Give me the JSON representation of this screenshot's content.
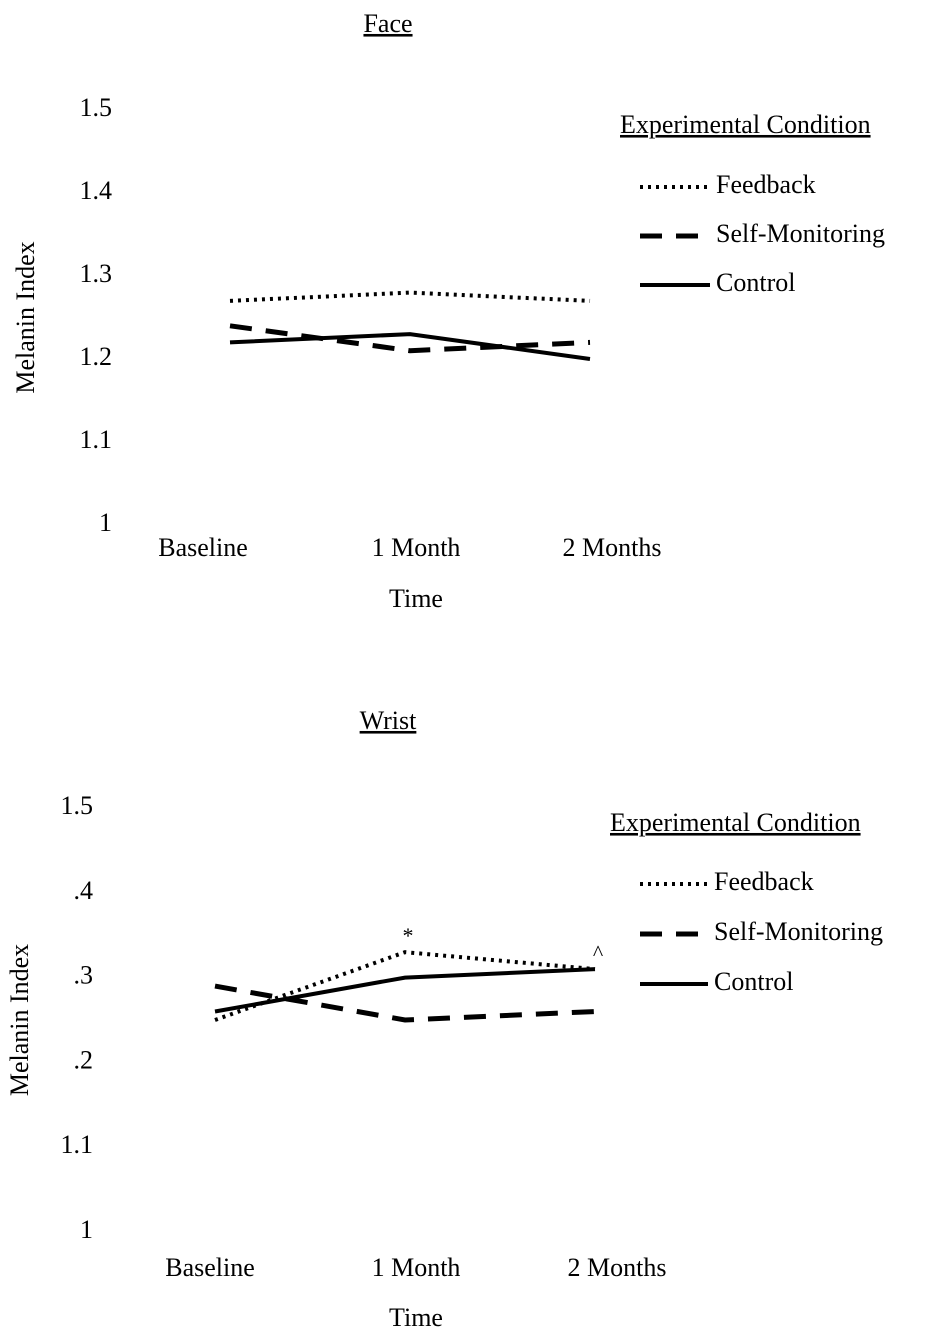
{
  "chart_data": [
    {
      "type": "line",
      "title": "Face",
      "x_label": "Time",
      "y_label": "Melanin Index",
      "categories": [
        "Baseline",
        "1 Month",
        "2 Months"
      ],
      "ylim": [
        1,
        1.5
      ],
      "yticks": [
        1,
        1.1,
        1.2,
        1.3,
        1.4,
        1.5
      ],
      "legend_title": "Experimental Condition",
      "legend": "right",
      "series": [
        {
          "name": "Feedback",
          "color": "#000000",
          "style": "dotted",
          "values": [
            1.27,
            1.28,
            1.27
          ]
        },
        {
          "name": "Self-Monitoring",
          "color": "#000000",
          "style": "dashed",
          "values": [
            1.24,
            1.21,
            1.22
          ]
        },
        {
          "name": "Control",
          "color": "#000000",
          "style": "solid",
          "values": [
            1.22,
            1.23,
            1.2
          ]
        }
      ]
    },
    {
      "type": "line",
      "title": "Wrist",
      "x_label": "Time",
      "y_label": "Melanin Index",
      "categories": [
        "Baseline",
        "1 Month",
        "2 Months"
      ],
      "ylim": [
        1,
        1.5
      ],
      "yticks": [
        1,
        {
          "value": 1.1,
          "label": "1.1"
        },
        {
          "value": 1.2,
          "label": ".2"
        },
        {
          "value": 1.3,
          "label": ".3"
        },
        {
          "value": 1.4,
          "label": ".4"
        },
        1.5
      ],
      "legend_title": "Experimental Condition",
      "legend": "right",
      "series": [
        {
          "name": "Feedback",
          "color": "#000000",
          "style": "dotted",
          "values": [
            1.25,
            1.33,
            1.31
          ]
        },
        {
          "name": "Self-Monitoring",
          "color": "#000000",
          "style": "dashed",
          "values": [
            1.29,
            1.25,
            1.26
          ]
        },
        {
          "name": "Control",
          "color": "#000000",
          "style": "solid",
          "values": [
            1.26,
            1.3,
            1.31
          ]
        }
      ],
      "annotations": [
        {
          "text": "*",
          "series": 0,
          "category_index": 1
        },
        {
          "text": "^",
          "series": 0,
          "category_index": 2
        }
      ]
    }
  ]
}
